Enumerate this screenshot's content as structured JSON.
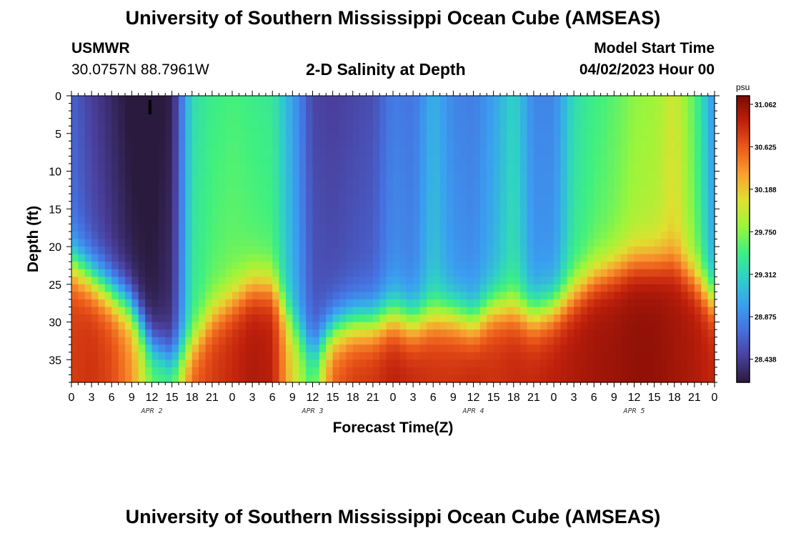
{
  "header": {
    "title": "University of Southern Mississippi Ocean Cube (AMSEAS)",
    "station_name": "USMWR",
    "station_coords": "30.0757N  88.7961W",
    "plot_title": "2-D Salinity at Depth",
    "model_start_label": "Model Start Time",
    "model_start_value": "04/02/2023 Hour 00"
  },
  "footer": {
    "title": "University of Southern Mississippi Ocean Cube (AMSEAS)"
  },
  "chart_data": {
    "type": "heatmap",
    "variable": "Salinity",
    "xlabel": "Forecast Time(Z)",
    "ylabel": "Depth (ft)",
    "x_tick_labels": [
      "0",
      "3",
      "6",
      "9",
      "12",
      "15",
      "18",
      "21",
      "0",
      "3",
      "6",
      "9",
      "12",
      "15",
      "18",
      "21",
      "0",
      "3",
      "6",
      "9",
      "12",
      "15",
      "18",
      "21",
      "0",
      "3",
      "6",
      "9",
      "12",
      "15",
      "18",
      "21",
      "0"
    ],
    "day_labels": [
      "APR 2",
      "APR 3",
      "APR 4",
      "APR 5"
    ],
    "y_ticks": [
      0,
      5,
      10,
      15,
      20,
      25,
      30,
      35
    ],
    "ylim": [
      0,
      38
    ],
    "xlim_hours": [
      0,
      96
    ],
    "colorbar": {
      "unit": "psu",
      "min": 28.2,
      "max": 31.15,
      "tick_values": [
        31.062,
        30.625,
        30.188,
        29.75,
        29.312,
        28.875,
        28.438
      ],
      "tick_labels": [
        "31.062",
        "30.625",
        "30.188",
        "29.750",
        "29.312",
        "28.875",
        "28.438"
      ],
      "colormap": [
        "#2a1a3d",
        "#4a3f9c",
        "#4670e0",
        "#3aa0f0",
        "#2fd0c8",
        "#3ff080",
        "#9cf53a",
        "#e0e030",
        "#f8a030",
        "#ec5a1a",
        "#c0200c",
        "#7a0a04"
      ]
    },
    "hours": [
      0,
      3,
      6,
      9,
      12,
      15,
      18,
      21,
      24,
      27,
      30,
      33,
      36,
      39,
      42,
      45,
      48,
      51,
      54,
      57,
      60,
      63,
      66,
      69,
      72,
      75,
      78,
      81,
      84,
      87,
      90,
      93,
      96
    ],
    "surface_salinity_psu": [
      28.75,
      28.55,
      28.4,
      28.25,
      28.22,
      28.35,
      29.45,
      29.6,
      29.65,
      29.6,
      29.55,
      29.1,
      28.6,
      28.55,
      28.6,
      28.65,
      28.9,
      28.85,
      29.2,
      28.95,
      28.9,
      29.1,
      29.4,
      28.95,
      28.95,
      29.45,
      29.6,
      29.7,
      29.85,
      29.9,
      30.1,
      29.7,
      29.0
    ],
    "halocline_depth_ft": [
      22,
      24,
      26,
      28,
      33,
      35,
      33,
      29,
      27,
      25,
      25,
      30,
      34,
      31,
      30,
      30,
      29,
      30,
      29,
      29,
      30,
      28,
      28,
      29,
      28,
      26,
      24,
      23,
      22,
      22,
      22,
      24,
      27
    ],
    "bottom_salinity_psu": [
      30.75,
      30.8,
      30.7,
      30.4,
      29.7,
      29.7,
      30.6,
      30.75,
      30.85,
      30.95,
      30.9,
      30.1,
      29.6,
      30.6,
      30.75,
      30.8,
      30.9,
      30.85,
      30.8,
      30.8,
      30.85,
      30.8,
      30.85,
      30.85,
      30.9,
      30.95,
      31.0,
      31.02,
      31.06,
      31.06,
      31.0,
      30.95,
      30.85
    ]
  }
}
